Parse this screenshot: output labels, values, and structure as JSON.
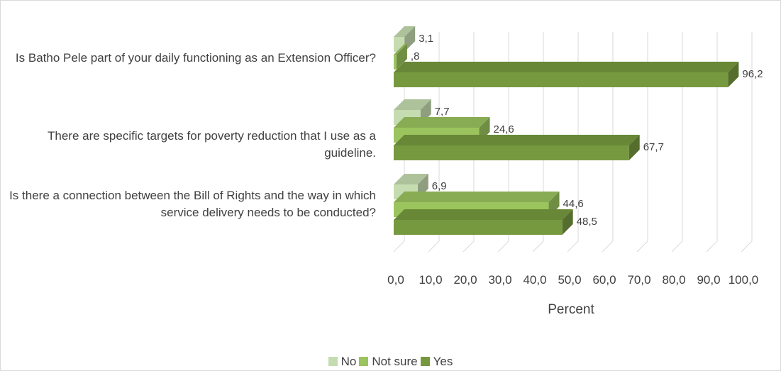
{
  "chart_data": {
    "type": "bar",
    "orientation": "horizontal",
    "style": "3d-clustered",
    "categories": [
      "Is Batho Pele part of your daily functioning as an Extension Officer?",
      "There are specific targets for poverty reduction that I use as a guideline.",
      "Is there a connection between the Bill of Rights and the way in which service delivery needs to be conducted?"
    ],
    "series": [
      {
        "name": "No",
        "color": "#c5dcb0",
        "values": [
          3.1,
          7.7,
          6.9
        ],
        "labels": [
          "3,1",
          "7,7",
          "6,9"
        ]
      },
      {
        "name": "Not sure",
        "color": "#9bc45e",
        "values": [
          0.8,
          24.6,
          44.6
        ],
        "labels": [
          ",8",
          "24,6",
          "44,6"
        ]
      },
      {
        "name": "Yes",
        "color": "#76993f",
        "values": [
          96.2,
          67.7,
          48.5
        ],
        "labels": [
          "96,2",
          "67,7",
          "48,5"
        ]
      }
    ],
    "x_ticks": [
      "0,0",
      "10,0",
      "20,0",
      "30,0",
      "40,0",
      "50,0",
      "60,0",
      "70,0",
      "80,0",
      "90,0",
      "100,0"
    ],
    "xlabel": "Percent",
    "xlim": [
      0,
      100
    ],
    "grid": true,
    "legend_position": "bottom"
  }
}
